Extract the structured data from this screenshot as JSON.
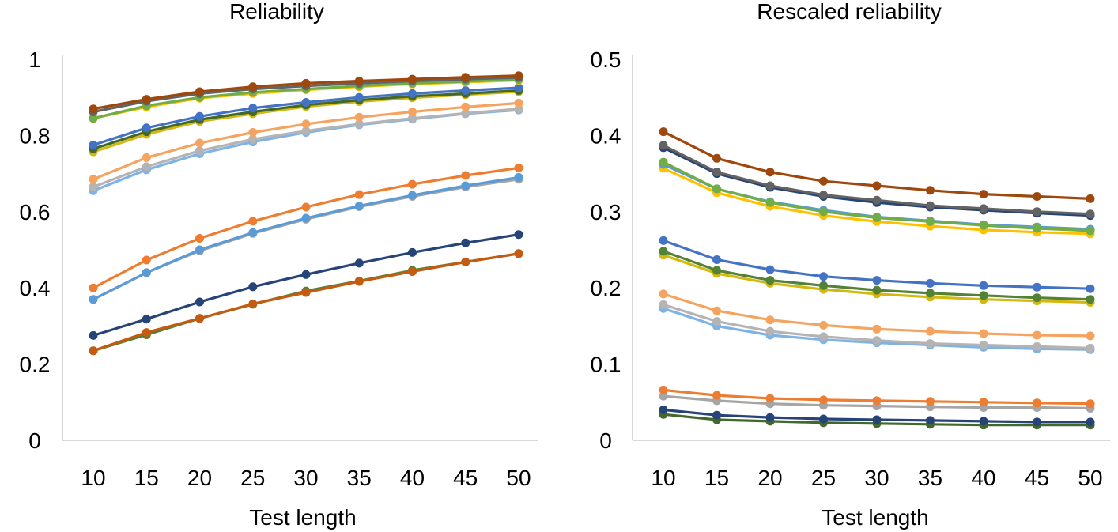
{
  "chart_data": [
    {
      "type": "line",
      "title": "Reliability",
      "xlabel": "Test length",
      "ylabel": "",
      "x": [
        10,
        15,
        20,
        25,
        30,
        35,
        40,
        45,
        50
      ],
      "ylim": [
        0,
        1
      ],
      "yticks": [
        "0",
        "0.2",
        "0.4",
        "0.6",
        "0.8",
        "1"
      ],
      "grid": false,
      "series": [
        {
          "color": "#9e480e",
          "values": [
            0.87,
            0.895,
            0.915,
            0.928,
            0.937,
            0.943,
            0.948,
            0.953,
            0.957
          ]
        },
        {
          "color": "#636363",
          "values": [
            0.862,
            0.89,
            0.91,
            0.922,
            0.93,
            0.937,
            0.943,
            0.948,
            0.952
          ]
        },
        {
          "color": "#70ad47",
          "values": [
            0.845,
            0.878,
            0.9,
            0.913,
            0.922,
            0.93,
            0.937,
            0.942,
            0.947
          ]
        },
        {
          "color": "#ffc000",
          "values": [
            0.845,
            0.875,
            0.898,
            0.91,
            0.92,
            0.928,
            0.935,
            0.94,
            0.945
          ]
        },
        {
          "color": "#4472c4",
          "values": [
            0.775,
            0.82,
            0.85,
            0.872,
            0.887,
            0.9,
            0.91,
            0.918,
            0.925
          ]
        },
        {
          "color": "#43682b",
          "values": [
            0.765,
            0.81,
            0.842,
            0.862,
            0.88,
            0.893,
            0.903,
            0.91,
            0.918
          ]
        },
        {
          "color": "#d4b80f",
          "values": [
            0.757,
            0.803,
            0.837,
            0.857,
            0.876,
            0.889,
            0.899,
            0.907,
            0.915
          ]
        },
        {
          "color": "#f4a460",
          "values": [
            0.685,
            0.742,
            0.78,
            0.808,
            0.83,
            0.848,
            0.862,
            0.875,
            0.885
          ]
        },
        {
          "color": "#b4b4b4",
          "values": [
            0.665,
            0.718,
            0.76,
            0.79,
            0.812,
            0.83,
            0.845,
            0.858,
            0.87
          ]
        },
        {
          "color": "#7fb2e5",
          "values": [
            0.655,
            0.71,
            0.752,
            0.783,
            0.808,
            0.828,
            0.843,
            0.857,
            0.867
          ]
        },
        {
          "color": "#ed7d31",
          "values": [
            0.4,
            0.473,
            0.53,
            0.575,
            0.612,
            0.645,
            0.672,
            0.695,
            0.715
          ]
        },
        {
          "color": "#5b9bd5",
          "values": [
            0.37,
            0.44,
            0.5,
            0.545,
            0.583,
            0.615,
            0.643,
            0.668,
            0.69
          ]
        },
        {
          "color": "#a5a5a5",
          "values": [
            0.37,
            0.44,
            0.497,
            0.543,
            0.58,
            0.613,
            0.64,
            0.665,
            0.685
          ]
        },
        {
          "color": "#264478",
          "values": [
            0.275,
            0.318,
            0.363,
            0.403,
            0.435,
            0.465,
            0.493,
            0.518,
            0.54
          ]
        },
        {
          "color": "#c55a11",
          "values": [
            0.235,
            0.283,
            0.32,
            0.358,
            0.388,
            0.417,
            0.443,
            0.468,
            0.49
          ]
        },
        {
          "color": "#548235",
          "values": [
            0.235,
            0.277,
            0.32,
            0.357,
            0.392,
            0.418,
            0.446,
            0.468,
            0.49
          ]
        }
      ]
    },
    {
      "type": "line",
      "title": "Rescaled reliability",
      "xlabel": "Test length",
      "ylabel": "",
      "x": [
        10,
        15,
        20,
        25,
        30,
        35,
        40,
        45,
        50
      ],
      "ylim": [
        0,
        0.5
      ],
      "yticks": [
        "0",
        "0.1",
        "0.2",
        "0.3",
        "0.4",
        "0.5"
      ],
      "grid": false,
      "series": [
        {
          "color": "#9e480e",
          "values": [
            0.405,
            0.37,
            0.352,
            0.34,
            0.334,
            0.328,
            0.323,
            0.32,
            0.317
          ]
        },
        {
          "color": "#636363",
          "values": [
            0.387,
            0.352,
            0.334,
            0.322,
            0.315,
            0.308,
            0.304,
            0.3,
            0.297
          ]
        },
        {
          "color": "#264478",
          "values": [
            0.384,
            0.35,
            0.332,
            0.32,
            0.312,
            0.306,
            0.302,
            0.298,
            0.295
          ]
        },
        {
          "color": "#70ad47",
          "values": [
            0.365,
            0.33,
            0.312,
            0.3,
            0.292,
            0.287,
            0.282,
            0.278,
            0.275
          ]
        },
        {
          "color": "#5b9bd5",
          "values": [
            0.362,
            0.33,
            0.313,
            0.302,
            0.293,
            0.288,
            0.283,
            0.28,
            0.277
          ]
        },
        {
          "color": "#ffc000",
          "values": [
            0.357,
            0.325,
            0.307,
            0.295,
            0.287,
            0.281,
            0.276,
            0.273,
            0.271
          ]
        },
        {
          "color": "#4472c4",
          "values": [
            0.262,
            0.237,
            0.224,
            0.215,
            0.21,
            0.206,
            0.203,
            0.201,
            0.199
          ]
        },
        {
          "color": "#548235",
          "values": [
            0.248,
            0.223,
            0.21,
            0.203,
            0.197,
            0.193,
            0.19,
            0.187,
            0.185
          ]
        },
        {
          "color": "#d4b80f",
          "values": [
            0.243,
            0.219,
            0.206,
            0.198,
            0.192,
            0.188,
            0.185,
            0.183,
            0.181
          ]
        },
        {
          "color": "#f4a460",
          "values": [
            0.192,
            0.17,
            0.158,
            0.151,
            0.146,
            0.143,
            0.14,
            0.138,
            0.137
          ]
        },
        {
          "color": "#b4b4b4",
          "values": [
            0.178,
            0.156,
            0.143,
            0.136,
            0.131,
            0.127,
            0.125,
            0.123,
            0.121
          ]
        },
        {
          "color": "#7fb2e5",
          "values": [
            0.173,
            0.15,
            0.138,
            0.132,
            0.128,
            0.125,
            0.122,
            0.12,
            0.119
          ]
        },
        {
          "color": "#ed7d31",
          "values": [
            0.066,
            0.059,
            0.055,
            0.053,
            0.052,
            0.051,
            0.05,
            0.049,
            0.048
          ]
        },
        {
          "color": "#a5a5a5",
          "values": [
            0.058,
            0.052,
            0.048,
            0.046,
            0.045,
            0.044,
            0.043,
            0.043,
            0.042
          ]
        },
        {
          "color": "#264478",
          "values": [
            0.04,
            0.033,
            0.03,
            0.028,
            0.027,
            0.026,
            0.025,
            0.024,
            0.024
          ]
        },
        {
          "color": "#43682b",
          "values": [
            0.034,
            0.027,
            0.025,
            0.023,
            0.022,
            0.021,
            0.02,
            0.02,
            0.02
          ]
        }
      ]
    }
  ]
}
